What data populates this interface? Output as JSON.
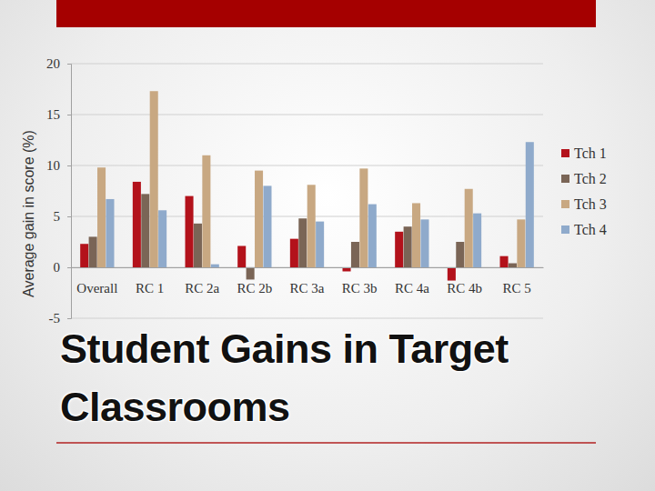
{
  "chart_data": {
    "type": "bar",
    "title": "Student Gains in Target Classrooms",
    "ylabel": "Average gain in score (%)",
    "categories": [
      "Overall",
      "RC 1",
      "RC 2a",
      "RC 2b",
      "RC 3a",
      "RC 3b",
      "RC 4a",
      "RC 4b",
      "RC 5"
    ],
    "series": [
      {
        "name": "Tch 1",
        "color": "#b3121b",
        "values": [
          2.3,
          8.4,
          7.0,
          2.1,
          2.8,
          -0.4,
          3.5,
          -1.3,
          1.1
        ]
      },
      {
        "name": "Tch 2",
        "color": "#7a6556",
        "values": [
          3.0,
          7.2,
          4.3,
          -1.2,
          4.8,
          2.5,
          4.0,
          2.5,
          0.4
        ]
      },
      {
        "name": "Tch 3",
        "color": "#c8a882",
        "values": [
          9.8,
          17.3,
          11.0,
          9.5,
          8.1,
          9.7,
          6.3,
          7.7,
          4.7
        ]
      },
      {
        "name": "Tch 4",
        "color": "#8faacb",
        "values": [
          6.7,
          5.6,
          0.3,
          8.0,
          4.5,
          6.2,
          4.7,
          5.3,
          12.3
        ]
      }
    ],
    "ylim": [
      -5,
      20
    ],
    "yticks": [
      -5,
      0,
      5,
      10,
      15,
      20
    ],
    "grid": true,
    "legend": "right"
  }
}
